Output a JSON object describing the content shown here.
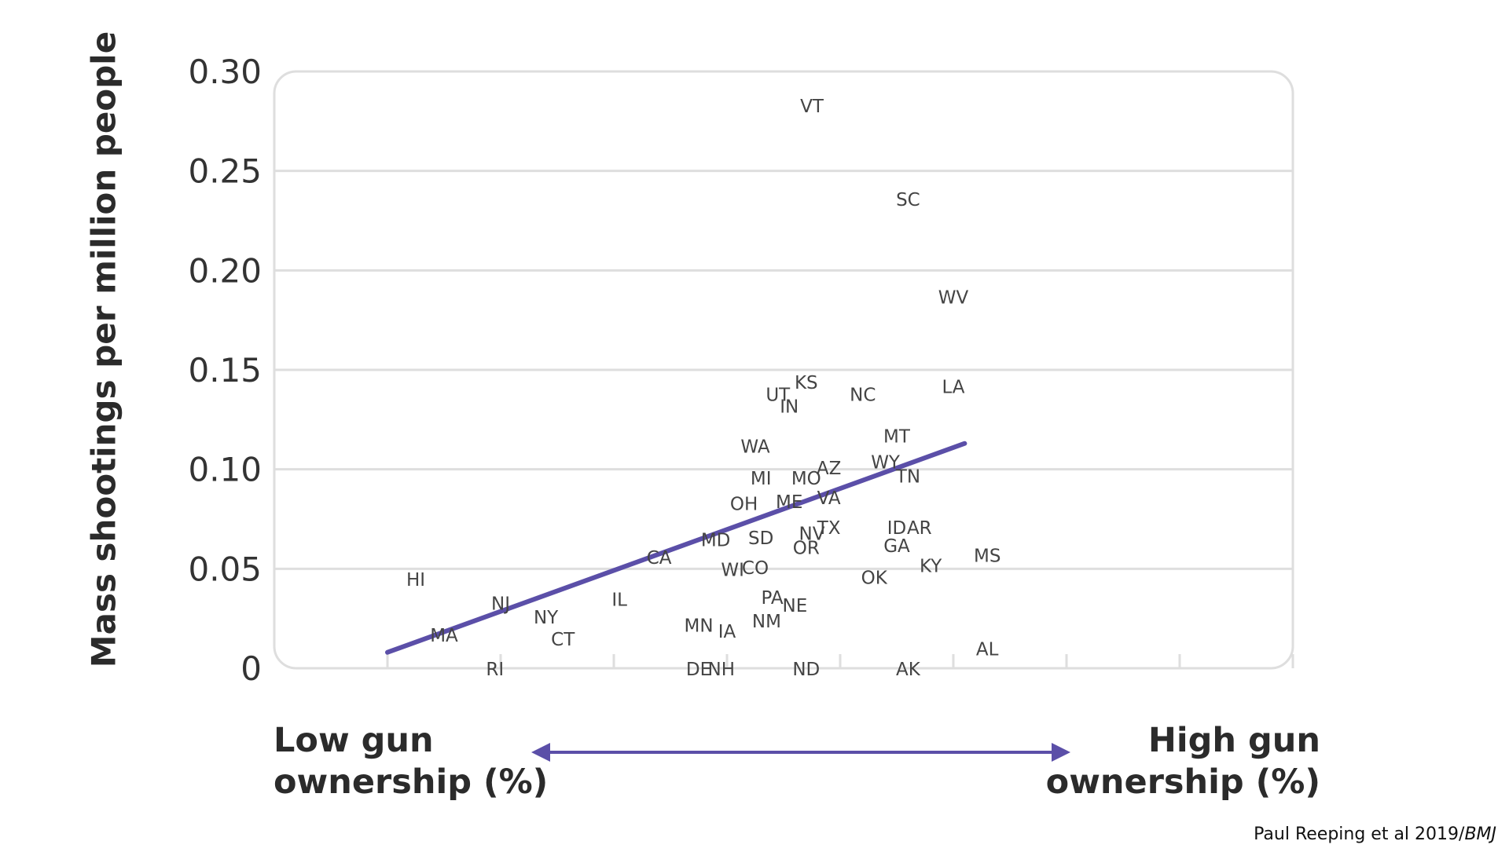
{
  "chart_data": {
    "type": "scatter",
    "title": "",
    "ylabel": "Mass shootings per million people",
    "xlabel_low": [
      "Low gun",
      "ownership (%)"
    ],
    "xlabel_high": [
      "High gun",
      "ownership (%)"
    ],
    "ylim": [
      0,
      0.3
    ],
    "xlim": [
      0,
      90
    ],
    "yticks": [
      "0",
      "0.05",
      "0.10",
      "0.15",
      "0.20",
      "0.25",
      "0.30"
    ],
    "ytick_values": [
      0,
      0.05,
      0.1,
      0.15,
      0.2,
      0.25,
      0.3
    ],
    "xticks_unlabeled": [
      10,
      20,
      30,
      40,
      50,
      60,
      70,
      80,
      90
    ],
    "grid": "horizontal",
    "accent_color": "#5b4fa8",
    "trendline": {
      "x": [
        10,
        61
      ],
      "y": [
        0.008,
        0.113
      ]
    },
    "points": [
      {
        "label": "VT",
        "x": 47.5,
        "y": 0.283
      },
      {
        "label": "SC",
        "x": 56,
        "y": 0.236
      },
      {
        "label": "WV",
        "x": 60,
        "y": 0.187
      },
      {
        "label": "KS",
        "x": 47,
        "y": 0.144
      },
      {
        "label": "UT",
        "x": 44.5,
        "y": 0.138
      },
      {
        "label": "IN",
        "x": 45.5,
        "y": 0.132
      },
      {
        "label": "NC",
        "x": 52,
        "y": 0.138
      },
      {
        "label": "LA",
        "x": 60,
        "y": 0.142
      },
      {
        "label": "MT",
        "x": 55,
        "y": 0.117
      },
      {
        "label": "WA",
        "x": 42.5,
        "y": 0.112
      },
      {
        "label": "AZ",
        "x": 49,
        "y": 0.101
      },
      {
        "label": "WY",
        "x": 54,
        "y": 0.104
      },
      {
        "label": "TN",
        "x": 56,
        "y": 0.097
      },
      {
        "label": "MI",
        "x": 43,
        "y": 0.096
      },
      {
        "label": "MO",
        "x": 47,
        "y": 0.096
      },
      {
        "label": "OH",
        "x": 41.5,
        "y": 0.083
      },
      {
        "label": "ME",
        "x": 45.5,
        "y": 0.084
      },
      {
        "label": "VA",
        "x": 49,
        "y": 0.086
      },
      {
        "label": "ID",
        "x": 55,
        "y": 0.071
      },
      {
        "label": "AR",
        "x": 57,
        "y": 0.071
      },
      {
        "label": "TX",
        "x": 49,
        "y": 0.071
      },
      {
        "label": "NV",
        "x": 47.5,
        "y": 0.068
      },
      {
        "label": "MD",
        "x": 39,
        "y": 0.065
      },
      {
        "label": "SD",
        "x": 43,
        "y": 0.066
      },
      {
        "label": "OR",
        "x": 47,
        "y": 0.061
      },
      {
        "label": "GA",
        "x": 55,
        "y": 0.062
      },
      {
        "label": "MS",
        "x": 63,
        "y": 0.057
      },
      {
        "label": "CA",
        "x": 34,
        "y": 0.056
      },
      {
        "label": "KY",
        "x": 58,
        "y": 0.052
      },
      {
        "label": "WI",
        "x": 40.5,
        "y": 0.05
      },
      {
        "label": "CO",
        "x": 42.5,
        "y": 0.051
      },
      {
        "label": "OK",
        "x": 53,
        "y": 0.046
      },
      {
        "label": "HI",
        "x": 12.5,
        "y": 0.045
      },
      {
        "label": "NJ",
        "x": 20,
        "y": 0.033
      },
      {
        "label": "IL",
        "x": 30.5,
        "y": 0.035
      },
      {
        "label": "PA",
        "x": 44,
        "y": 0.036
      },
      {
        "label": "NE",
        "x": 46,
        "y": 0.032
      },
      {
        "label": "NY",
        "x": 24,
        "y": 0.026
      },
      {
        "label": "NM",
        "x": 43.5,
        "y": 0.024
      },
      {
        "label": "MN",
        "x": 37.5,
        "y": 0.022
      },
      {
        "label": "IA",
        "x": 40,
        "y": 0.019
      },
      {
        "label": "MA",
        "x": 15,
        "y": 0.017
      },
      {
        "label": "CT",
        "x": 25.5,
        "y": 0.015
      },
      {
        "label": "AL",
        "x": 63,
        "y": 0.01
      },
      {
        "label": "RI",
        "x": 19.5,
        "y": 0
      },
      {
        "label": "DE",
        "x": 37.5,
        "y": 0
      },
      {
        "label": "NH",
        "x": 39.5,
        "y": 0
      },
      {
        "label": "ND",
        "x": 47,
        "y": 0
      },
      {
        "label": "AK",
        "x": 56,
        "y": 0
      }
    ]
  },
  "source": {
    "prefix": "Paul Reeping et al 2019/",
    "journal": "BMJ"
  }
}
